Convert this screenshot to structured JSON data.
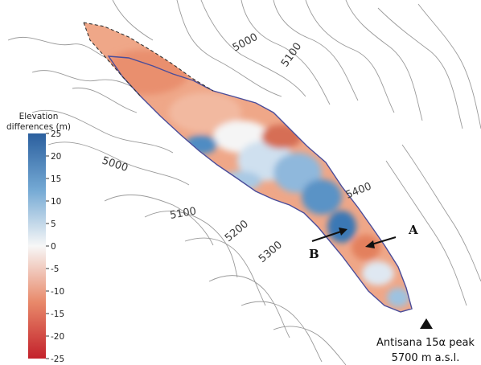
{
  "legend": {
    "title_line1": "Elevation",
    "title_line2": "differences (m)",
    "min": -25,
    "max": 25,
    "ticks": [
      "25",
      "20",
      "15",
      "10",
      "5",
      "0",
      "-5",
      "-10",
      "-15",
      "-20",
      "-25"
    ],
    "colors": {
      "positive": "#2166ac",
      "neutral": "#f7f7f7",
      "negative": "#b2182b"
    }
  },
  "contour_labels": [
    "5000",
    "5100",
    "5000",
    "5100",
    "5200",
    "5300",
    "5400"
  ],
  "markers": {
    "a": "A",
    "b": "B"
  },
  "peak": {
    "name": "Antisana 15α peak",
    "elevation": "5700 m a.s.l.",
    "icon": "triangle-peak-icon"
  }
}
